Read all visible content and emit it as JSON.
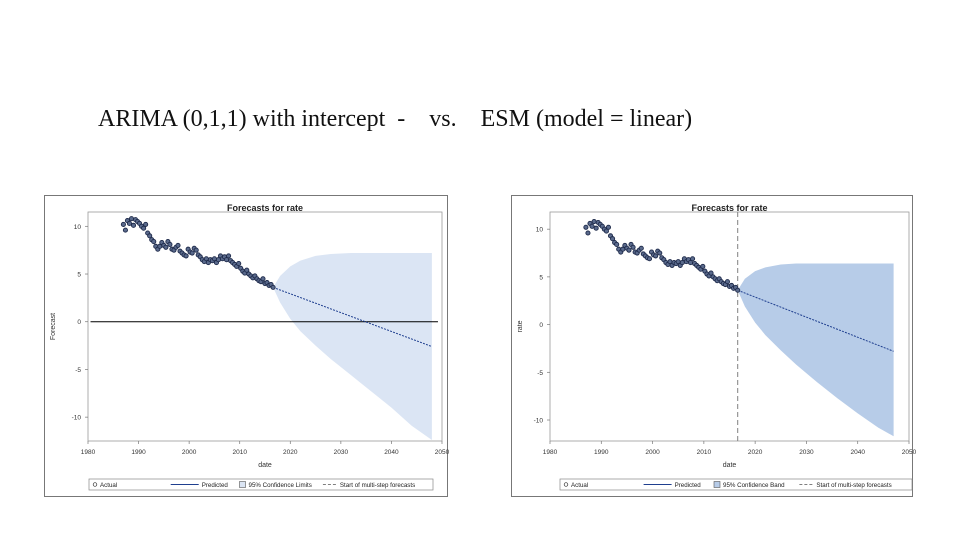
{
  "slide": {
    "title_left": "ARIMA (0,1,1) with intercept",
    "title_sep": "-",
    "title_vs": "vs.",
    "title_right": "ESM (model = linear)"
  },
  "chart_data": [
    {
      "type": "line",
      "title": "Forecasts for rate",
      "xlabel": "date",
      "ylabel": "Forecast",
      "xlim": [
        1980,
        2050
      ],
      "ylim": [
        -12.5,
        11.5
      ],
      "xticks": [
        1980,
        1990,
        2000,
        2010,
        2020,
        2030,
        2040,
        2050
      ],
      "yticks": [
        -10,
        -5,
        0,
        5,
        10
      ],
      "colors": {
        "band": "#dbe5f4",
        "pred": "#1f3f8f",
        "actual": "#1e2a4a",
        "ref": "#000000"
      },
      "actual": {
        "name": "Actual",
        "x": [
          1987,
          1987.4,
          1987.8,
          1988.2,
          1988.6,
          1989,
          1989.4,
          1989.8,
          1990.2,
          1990.6,
          1991,
          1991.4,
          1991.8,
          1992.2,
          1992.6,
          1993,
          1993.4,
          1993.8,
          1994.2,
          1994.6,
          1995,
          1995.4,
          1995.8,
          1996.2,
          1996.6,
          1997,
          1997.4,
          1997.8,
          1998.2,
          1998.6,
          1999,
          1999.4,
          1999.8,
          2000.2,
          2000.6,
          2001,
          2001.4,
          2001.8,
          2002.2,
          2002.6,
          2003,
          2003.4,
          2003.8,
          2004.2,
          2004.6,
          2005,
          2005.4,
          2005.8,
          2006.2,
          2006.6,
          2007,
          2007.4,
          2007.8,
          2008.2,
          2008.6,
          2009,
          2009.4,
          2009.8,
          2010.2,
          2010.6,
          2011,
          2011.4,
          2011.8,
          2012.2,
          2012.6,
          2013,
          2013.4,
          2013.8,
          2014.2,
          2014.6,
          2015,
          2015.4,
          2015.8,
          2016.2,
          2016.6
        ],
        "y": [
          10.2,
          9.6,
          10.6,
          10.3,
          10.8,
          10.1,
          10.7,
          10.5,
          10.3,
          10.0,
          9.8,
          10.2,
          9.3,
          9.0,
          8.6,
          8.4,
          7.9,
          7.6,
          7.9,
          8.3,
          8.0,
          7.8,
          8.4,
          8.1,
          7.6,
          7.5,
          7.8,
          8.0,
          7.4,
          7.2,
          7.0,
          6.9,
          7.6,
          7.3,
          7.2,
          7.7,
          7.5,
          7.0,
          6.8,
          6.5,
          6.3,
          6.6,
          6.2,
          6.5,
          6.4,
          6.6,
          6.2,
          6.5,
          6.9,
          6.6,
          6.8,
          6.5,
          6.9,
          6.4,
          6.2,
          6.0,
          5.8,
          6.1,
          5.6,
          5.3,
          5.1,
          5.4,
          5.0,
          4.8,
          4.6,
          4.8,
          4.5,
          4.3,
          4.2,
          4.5,
          4.0,
          4.1,
          3.8,
          3.9,
          3.6
        ]
      },
      "predicted": {
        "name": "Predicted",
        "x": [
          2016.6,
          2048
        ],
        "y": [
          3.6,
          -2.6
        ]
      },
      "band": {
        "name": "95% Confidence Limits",
        "x": [
          2016.6,
          2018,
          2020,
          2022,
          2025,
          2028,
          2032,
          2036,
          2040,
          2044,
          2048
        ],
        "upper": [
          3.6,
          4.8,
          5.8,
          6.4,
          6.9,
          7.1,
          7.2,
          7.2,
          7.2,
          7.2,
          7.2
        ],
        "lower": [
          3.6,
          2.0,
          0.3,
          -1.0,
          -2.5,
          -3.9,
          -5.6,
          -7.3,
          -9.0,
          -10.9,
          -12.4
        ]
      },
      "reference_line": {
        "y": 0,
        "x": [
          1980.5,
          2049.2
        ]
      },
      "legend": [
        "Actual",
        "Predicted",
        "95% Confidence Limits",
        "Start of multi-step forecasts"
      ]
    },
    {
      "type": "line",
      "title": "Forecasts for rate",
      "xlabel": "date",
      "ylabel": "rate",
      "xlim": [
        1980,
        2050
      ],
      "ylim": [
        -12.2,
        11.8
      ],
      "xticks": [
        1980,
        1990,
        2000,
        2010,
        2020,
        2030,
        2040,
        2050
      ],
      "yticks": [
        -10,
        -5,
        0,
        5,
        10
      ],
      "colors": {
        "band": "#b7cce8",
        "pred": "#1f3f8f",
        "actual": "#1e2a4a",
        "ref": "#808080"
      },
      "actual": {
        "name": "Actual",
        "x": [
          1987,
          1987.4,
          1987.8,
          1988.2,
          1988.6,
          1989,
          1989.4,
          1989.8,
          1990.2,
          1990.6,
          1991,
          1991.4,
          1991.8,
          1992.2,
          1992.6,
          1993,
          1993.4,
          1993.8,
          1994.2,
          1994.6,
          1995,
          1995.4,
          1995.8,
          1996.2,
          1996.6,
          1997,
          1997.4,
          1997.8,
          1998.2,
          1998.6,
          1999,
          1999.4,
          1999.8,
          2000.2,
          2000.6,
          2001,
          2001.4,
          2001.8,
          2002.2,
          2002.6,
          2003,
          2003.4,
          2003.8,
          2004.2,
          2004.6,
          2005,
          2005.4,
          2005.8,
          2006.2,
          2006.6,
          2007,
          2007.4,
          2007.8,
          2008.2,
          2008.6,
          2009,
          2009.4,
          2009.8,
          2010.2,
          2010.6,
          2011,
          2011.4,
          2011.8,
          2012.2,
          2012.6,
          2013,
          2013.4,
          2013.8,
          2014.2,
          2014.6,
          2015,
          2015.4,
          2015.8,
          2016.2,
          2016.6
        ],
        "y": [
          10.2,
          9.6,
          10.6,
          10.3,
          10.8,
          10.1,
          10.7,
          10.5,
          10.3,
          10.0,
          9.8,
          10.2,
          9.3,
          9.0,
          8.6,
          8.4,
          7.9,
          7.6,
          7.9,
          8.3,
          8.0,
          7.8,
          8.4,
          8.1,
          7.6,
          7.5,
          7.8,
          8.0,
          7.4,
          7.2,
          7.0,
          6.9,
          7.6,
          7.3,
          7.2,
          7.7,
          7.5,
          7.0,
          6.8,
          6.5,
          6.3,
          6.6,
          6.2,
          6.5,
          6.4,
          6.6,
          6.2,
          6.5,
          6.9,
          6.6,
          6.8,
          6.5,
          6.9,
          6.4,
          6.2,
          6.0,
          5.8,
          6.1,
          5.6,
          5.3,
          5.1,
          5.4,
          5.0,
          4.8,
          4.6,
          4.8,
          4.5,
          4.3,
          4.2,
          4.5,
          4.0,
          4.1,
          3.8,
          3.9,
          3.6
        ]
      },
      "predicted": {
        "name": "Predicted",
        "x": [
          2016.6,
          2047
        ],
        "y": [
          3.6,
          -2.8
        ]
      },
      "band": {
        "name": "95% Confidence Band",
        "x": [
          2016.6,
          2018,
          2020,
          2022,
          2025,
          2028,
          2032,
          2036,
          2040,
          2044,
          2047
        ],
        "upper": [
          3.6,
          4.8,
          5.6,
          6.0,
          6.3,
          6.4,
          6.4,
          6.4,
          6.4,
          6.4,
          6.4
        ],
        "lower": [
          3.6,
          1.9,
          0.2,
          -1.1,
          -2.7,
          -4.2,
          -6.0,
          -7.7,
          -9.3,
          -10.8,
          -11.7
        ]
      },
      "reference_line": {
        "x": 2016.6
      },
      "legend": [
        "Actual",
        "Predicted",
        "95% Confidence Band",
        "Start of multi-step forecasts"
      ]
    }
  ]
}
